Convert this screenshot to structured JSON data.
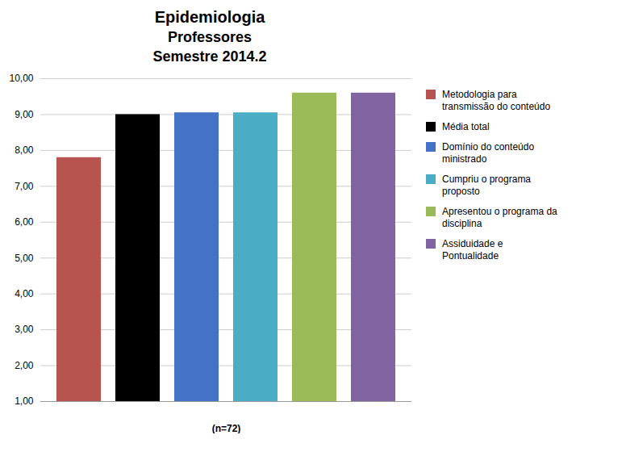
{
  "chart_data": {
    "type": "bar",
    "title": "Epidemiologia",
    "subtitle": "Professores\nSemestre 2014.2",
    "xlabel": "(n=72)",
    "categories": [
      "Metodologia para\ntransmissão do conteúdo",
      "Média total",
      "Domínio do conteúdo\nministrado",
      "Cumpriu o programa\nproposto",
      "Apresentou o programa da\ndisciplina",
      "Assiduidade e\nPontualidade"
    ],
    "values": [
      7.8,
      9.0,
      9.05,
      9.05,
      9.6,
      9.6
    ],
    "colors": [
      "#b85450",
      "#000000",
      "#4472c4",
      "#4bacc6",
      "#9bbb59",
      "#8064a2"
    ],
    "ylim": [
      1.0,
      10.0
    ],
    "yticks": [
      {
        "value": 1.0,
        "label": "1,00"
      },
      {
        "value": 2.0,
        "label": "2,00"
      },
      {
        "value": 3.0,
        "label": "3,00"
      },
      {
        "value": 4.0,
        "label": "4,00"
      },
      {
        "value": 5.0,
        "label": "5,00"
      },
      {
        "value": 6.0,
        "label": "6,00"
      },
      {
        "value": 7.0,
        "label": "7,00"
      },
      {
        "value": 8.0,
        "label": "8,00"
      },
      {
        "value": 9.0,
        "label": "9,00"
      },
      {
        "value": 10.0,
        "label": "10,00"
      }
    ],
    "grid": true,
    "legend": "right",
    "tick_labels": "y"
  }
}
